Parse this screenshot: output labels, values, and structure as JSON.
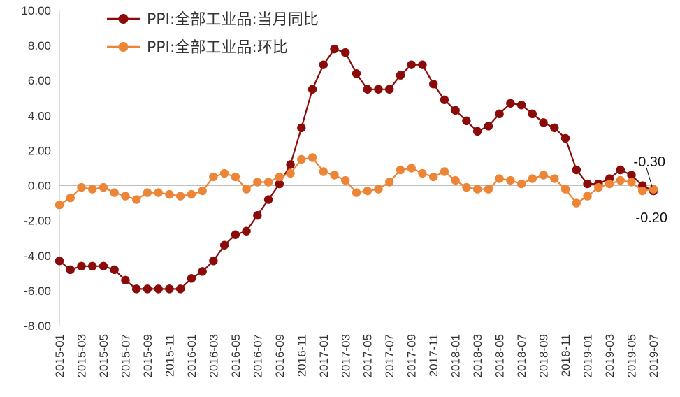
{
  "chart_data": {
    "type": "line",
    "title": "",
    "xlabel": "",
    "ylabel": "",
    "ylim": [
      -8,
      10
    ],
    "yticks": [
      "-8.00",
      "-6.00",
      "-4.00",
      "-2.00",
      "0.00",
      "2.00",
      "4.00",
      "6.00",
      "8.00",
      "10.00"
    ],
    "grid": false,
    "legend_position": "top-left",
    "x": [
      "2015-01",
      "2015-02",
      "2015-03",
      "2015-04",
      "2015-05",
      "2015-06",
      "2015-07",
      "2015-08",
      "2015-09",
      "2015-10",
      "2015-11",
      "2015-12",
      "2016-01",
      "2016-02",
      "2016-03",
      "2016-04",
      "2016-05",
      "2016-06",
      "2016-07",
      "2016-08",
      "2016-09",
      "2016-10",
      "2016-11",
      "2016-12",
      "2017-01",
      "2017-02",
      "2017-03",
      "2017-04",
      "2017-05",
      "2017-06",
      "2017-07",
      "2017-08",
      "2017-09",
      "2017-10",
      "2017-11",
      "2017-12",
      "2018-01",
      "2018-02",
      "2018-03",
      "2018-04",
      "2018-05",
      "2018-06",
      "2018-07",
      "2018-08",
      "2018-09",
      "2018-10",
      "2018-11",
      "2018-12",
      "2019-01",
      "2019-02",
      "2019-03",
      "2019-04",
      "2019-05",
      "2019-06",
      "2019-07"
    ],
    "xtick_labels": [
      "2015-01",
      "2015-03",
      "2015-05",
      "2015-07",
      "2015-09",
      "2015-11",
      "2016-01",
      "2016-03",
      "2016-05",
      "2016-07",
      "2016-09",
      "2016-11",
      "2017-01",
      "2017-03",
      "2017-05",
      "2017-07",
      "2017-09",
      "2017-11",
      "2018-01",
      "2018-03",
      "2018-05",
      "2018-07",
      "2018-09",
      "2018-11",
      "2019-01",
      "2019-03",
      "2019-05",
      "2019-07"
    ],
    "series": [
      {
        "name": "PPI:全部工业品:当月同比",
        "color": "#8B0A0A",
        "values": [
          -4.3,
          -4.8,
          -4.6,
          -4.6,
          -4.6,
          -4.8,
          -5.4,
          -5.9,
          -5.9,
          -5.9,
          -5.9,
          -5.9,
          -5.3,
          -4.9,
          -4.3,
          -3.4,
          -2.8,
          -2.6,
          -1.7,
          -0.8,
          0.1,
          1.2,
          3.3,
          5.5,
          6.9,
          7.8,
          7.6,
          6.4,
          5.5,
          5.5,
          5.5,
          6.3,
          6.9,
          6.9,
          5.8,
          4.9,
          4.3,
          3.7,
          3.1,
          3.4,
          4.1,
          4.7,
          4.6,
          4.1,
          3.6,
          3.3,
          2.7,
          0.9,
          0.1,
          0.1,
          0.4,
          0.9,
          0.6,
          0.0,
          -0.3
        ]
      },
      {
        "name": "PPI:全部工业品:环比",
        "color": "#ED8536",
        "values": [
          -1.1,
          -0.7,
          -0.1,
          -0.2,
          -0.1,
          -0.4,
          -0.6,
          -0.8,
          -0.4,
          -0.4,
          -0.5,
          -0.6,
          -0.5,
          -0.3,
          0.5,
          0.7,
          0.5,
          -0.2,
          0.2,
          0.2,
          0.5,
          0.7,
          1.5,
          1.6,
          0.8,
          0.6,
          0.3,
          -0.4,
          -0.3,
          -0.2,
          0.2,
          0.9,
          1.0,
          0.7,
          0.5,
          0.8,
          0.3,
          -0.1,
          -0.2,
          -0.2,
          0.4,
          0.3,
          0.1,
          0.4,
          0.6,
          0.4,
          -0.2,
          -1.0,
          -0.6,
          -0.1,
          0.1,
          0.3,
          0.2,
          -0.3,
          -0.2
        ]
      }
    ],
    "annotations": [
      {
        "text": "-0.30",
        "series": 0,
        "index": 54
      },
      {
        "text": "-0.20",
        "series": 1,
        "index": 54
      }
    ]
  }
}
